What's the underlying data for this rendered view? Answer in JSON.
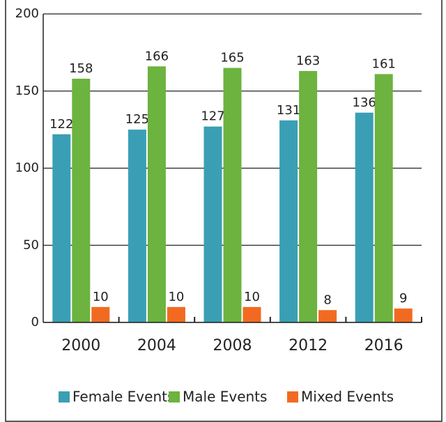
{
  "chart_data": {
    "type": "bar",
    "categories": [
      "2000",
      "2004",
      "2008",
      "2012",
      "2016"
    ],
    "series": [
      {
        "name": "Female Events",
        "color": "#3a9fb5",
        "values": [
          122,
          125,
          127,
          131,
          136
        ]
      },
      {
        "name": "Male Events",
        "color": "#6cb33f",
        "values": [
          158,
          166,
          165,
          163,
          161
        ]
      },
      {
        "name": "Mixed Events",
        "color": "#f26a21",
        "values": [
          10,
          10,
          10,
          8,
          9
        ]
      }
    ],
    "ylim": [
      0,
      200
    ],
    "yticks": [
      0,
      50,
      100,
      150,
      200
    ],
    "grid": true,
    "legend": "bottom"
  }
}
